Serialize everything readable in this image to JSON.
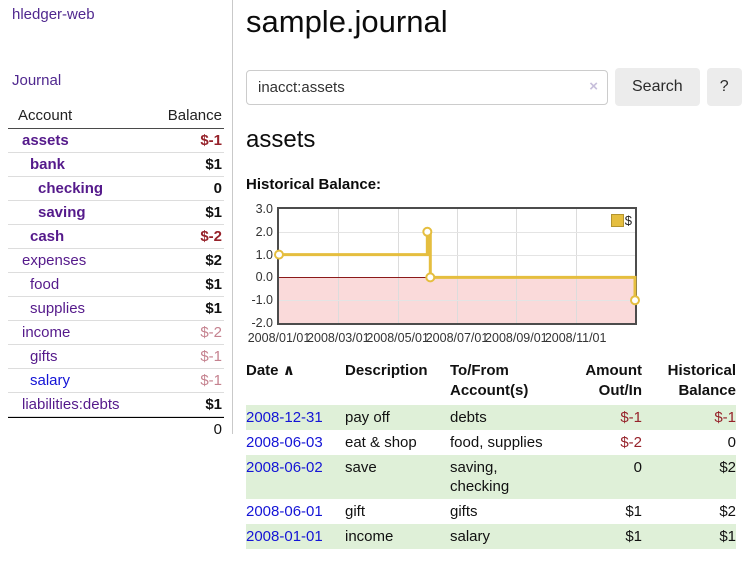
{
  "app": {
    "title": "hledger-web"
  },
  "sidebar": {
    "journal_label": "Journal",
    "accounts": {
      "header": {
        "account": "Account",
        "balance": "Balance"
      },
      "rows": [
        {
          "name": "assets",
          "level": 1,
          "bold": true,
          "blue": false,
          "balance": "$-1",
          "balance_class": "neg-strong"
        },
        {
          "name": "bank",
          "level": 2,
          "bold": true,
          "blue": false,
          "balance": "$1",
          "balance_class": ""
        },
        {
          "name": "checking",
          "level": 3,
          "bold": true,
          "blue": false,
          "balance": "0",
          "balance_class": ""
        },
        {
          "name": "saving",
          "level": 3,
          "bold": true,
          "blue": false,
          "balance": "$1",
          "balance_class": ""
        },
        {
          "name": "cash",
          "level": 2,
          "bold": true,
          "blue": false,
          "balance": "$-2",
          "balance_class": "neg-strong"
        },
        {
          "name": "expenses",
          "level": 1,
          "bold": false,
          "blue": false,
          "balance": "$2",
          "balance_class": ""
        },
        {
          "name": "food",
          "level": 2,
          "bold": false,
          "blue": false,
          "balance": "$1",
          "balance_class": ""
        },
        {
          "name": "supplies",
          "level": 2,
          "bold": false,
          "blue": false,
          "balance": "$1",
          "balance_class": ""
        },
        {
          "name": "income",
          "level": 1,
          "bold": false,
          "blue": false,
          "balance": "$-2",
          "balance_class": "neg-dim"
        },
        {
          "name": "gifts",
          "level": 2,
          "bold": false,
          "blue": false,
          "balance": "$-1",
          "balance_class": "neg-dim"
        },
        {
          "name": "salary",
          "level": 2,
          "bold": false,
          "blue": true,
          "balance": "$-1",
          "balance_class": "neg-dim"
        },
        {
          "name": "liabilities:debts",
          "level": 1,
          "bold": false,
          "blue": false,
          "balance": "$1",
          "balance_class": ""
        }
      ],
      "total": "0"
    }
  },
  "main": {
    "title": "sample.journal",
    "search": {
      "value": "inacct:assets",
      "clear_icon": "×",
      "button_label": "Search",
      "help_button_label": "?"
    },
    "account_heading": "assets",
    "chart_title": "Historical Balance:"
  },
  "chart_data": {
    "type": "line",
    "step": true,
    "title": "Historical Balance",
    "ylim": [
      -2,
      3
    ],
    "y_ticks": [
      "3.0",
      "2.0",
      "1.0",
      "0.0",
      "-1.0",
      "-2.0"
    ],
    "x_range_months": [
      0,
      12
    ],
    "x_ticks": [
      {
        "t": 0,
        "label": "2008/01/01"
      },
      {
        "t": 2,
        "label": "2008/03/01"
      },
      {
        "t": 4,
        "label": "2008/05/01"
      },
      {
        "t": 6,
        "label": "2008/07/01"
      },
      {
        "t": 8,
        "label": "2008/09/01"
      },
      {
        "t": 10,
        "label": "2008/11/01"
      }
    ],
    "series": [
      {
        "name": "$",
        "points": [
          {
            "date": "2008-01-01",
            "t": 0,
            "value": 1
          },
          {
            "date": "2008-06-01",
            "t": 5.0,
            "value": 2
          },
          {
            "date": "2008-06-03",
            "t": 5.1,
            "value": 0
          },
          {
            "date": "2008-12-31",
            "t": 12,
            "value": -1
          }
        ]
      }
    ],
    "legend": {
      "label": "$",
      "position": "top-right"
    },
    "colors": {
      "line": "#e5be3f",
      "marker_fill": "#ffffff",
      "zero_line": "#8b1a1a",
      "negative_region": "#fadada",
      "grid": "#dcdcdc"
    }
  },
  "register_table": {
    "headers": {
      "date": {
        "label": "Date",
        "sort_indicator": "∧"
      },
      "description": {
        "label": "Description"
      },
      "accounts": {
        "line1": "To/From",
        "line2": "Account(s)"
      },
      "amount": {
        "line1": "Amount",
        "line2": "Out/In"
      },
      "balance": {
        "line1": "Historical",
        "line2": "Balance"
      }
    },
    "rows": [
      {
        "date": "2008-12-31",
        "description": "pay off",
        "accounts": "debts",
        "amount": "$-1",
        "amount_negative": true,
        "balance": "$-1",
        "balance_negative": true
      },
      {
        "date": "2008-06-03",
        "description": "eat & shop",
        "accounts": "food, supplies",
        "amount": "$-2",
        "amount_negative": true,
        "balance": "0",
        "balance_negative": false
      },
      {
        "date": "2008-06-02",
        "description": "save",
        "accounts": "saving, checking",
        "amount": "0",
        "amount_negative": false,
        "balance": "$2",
        "balance_negative": false
      },
      {
        "date": "2008-06-01",
        "description": "gift",
        "accounts": "gifts",
        "amount": "$1",
        "amount_negative": false,
        "balance": "$2",
        "balance_negative": false
      },
      {
        "date": "2008-01-01",
        "description": "income",
        "accounts": "salary",
        "amount": "$1",
        "amount_negative": false,
        "balance": "$1",
        "balance_negative": false
      }
    ]
  }
}
